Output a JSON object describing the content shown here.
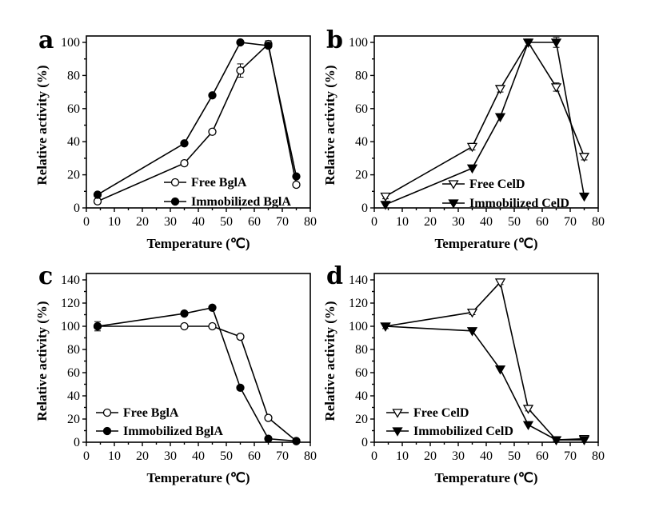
{
  "chart_data": [
    {
      "type": "line",
      "panel_label": "a",
      "xlabel": "Temperature (℃)",
      "ylabel": "Relative activity (%)",
      "xlim": [
        0,
        80
      ],
      "ylim": [
        0,
        100
      ],
      "xticks": [
        0,
        10,
        20,
        30,
        40,
        50,
        60,
        70,
        80
      ],
      "yticks": [
        0,
        20,
        40,
        60,
        80,
        100
      ],
      "legend": "bottom-right",
      "series": [
        {
          "name": "Free BglA",
          "marker": "circle-open",
          "x": [
            4,
            35,
            45,
            55,
            65,
            75
          ],
          "y": [
            4,
            27,
            46,
            83,
            99,
            14
          ],
          "err": [
            1.5,
            1.5,
            1.5,
            4,
            2,
            1.5
          ]
        },
        {
          "name": "Immobilized BglA",
          "marker": "circle-filled",
          "x": [
            4,
            35,
            45,
            55,
            65,
            75
          ],
          "y": [
            8,
            39,
            68,
            100,
            98,
            19
          ],
          "err": [
            0,
            0,
            0,
            0,
            0,
            0
          ]
        }
      ]
    },
    {
      "type": "line",
      "panel_label": "b",
      "xlabel": "Temperature (℃)",
      "ylabel": "Relative activity (%)",
      "xlim": [
        0,
        80
      ],
      "ylim": [
        0,
        100
      ],
      "xticks": [
        0,
        10,
        20,
        30,
        40,
        50,
        60,
        70,
        80
      ],
      "yticks": [
        0,
        20,
        40,
        60,
        80,
        100
      ],
      "legend": "bottom-right",
      "series": [
        {
          "name": "Free CelD",
          "marker": "triangle-down-open",
          "x": [
            4,
            35,
            45,
            55,
            65,
            75
          ],
          "y": [
            7,
            37,
            72,
            100,
            73,
            31
          ],
          "err": [
            1.5,
            2,
            2,
            2,
            2.5,
            2
          ]
        },
        {
          "name": "Immobilized CelD",
          "marker": "triangle-down-filled",
          "x": [
            4,
            35,
            45,
            55,
            65,
            75
          ],
          "y": [
            2,
            24,
            55,
            100,
            100,
            7
          ],
          "err": [
            0,
            0,
            0,
            0,
            3,
            0
          ]
        }
      ]
    },
    {
      "type": "line",
      "panel_label": "c",
      "xlabel": "Temperature (℃)",
      "ylabel": "Relative activity (%)",
      "xlim": [
        0,
        80
      ],
      "ylim": [
        0,
        140
      ],
      "xticks": [
        0,
        10,
        20,
        30,
        40,
        50,
        60,
        70,
        80
      ],
      "yticks": [
        0,
        20,
        40,
        60,
        80,
        100,
        120,
        140
      ],
      "legend": "bottom-left",
      "series": [
        {
          "name": "Free BglA",
          "marker": "circle-open",
          "x": [
            4,
            35,
            45,
            55,
            65,
            75
          ],
          "y": [
            100,
            100,
            100,
            91,
            21,
            1
          ],
          "err": [
            4,
            2,
            2,
            2,
            2,
            1
          ]
        },
        {
          "name": "Immobilized BglA",
          "marker": "circle-filled",
          "x": [
            4,
            35,
            45,
            55,
            65,
            75
          ],
          "y": [
            100,
            111,
            116,
            47,
            3,
            1
          ],
          "err": [
            0,
            0,
            0,
            0,
            0,
            0
          ]
        }
      ]
    },
    {
      "type": "line",
      "panel_label": "d",
      "xlabel": "Temperature (℃)",
      "ylabel": "Relative activity (%)",
      "xlim": [
        0,
        80
      ],
      "ylim": [
        0,
        140
      ],
      "xticks": [
        0,
        10,
        20,
        30,
        40,
        50,
        60,
        70,
        80
      ],
      "yticks": [
        0,
        20,
        40,
        60,
        80,
        100,
        120,
        140
      ],
      "legend": "bottom-left",
      "series": [
        {
          "name": "Free CelD",
          "marker": "triangle-down-open",
          "x": [
            4,
            35,
            45,
            55,
            65,
            75
          ],
          "y": [
            100,
            112,
            138,
            29,
            2,
            3
          ],
          "err": [
            2,
            2,
            2,
            2,
            1,
            1
          ]
        },
        {
          "name": "Immobilized CelD",
          "marker": "triangle-down-filled",
          "x": [
            4,
            35,
            45,
            55,
            65,
            75
          ],
          "y": [
            100,
            96,
            63,
            15,
            2,
            2
          ],
          "err": [
            0,
            0,
            0,
            0,
            0,
            0
          ]
        }
      ]
    }
  ]
}
